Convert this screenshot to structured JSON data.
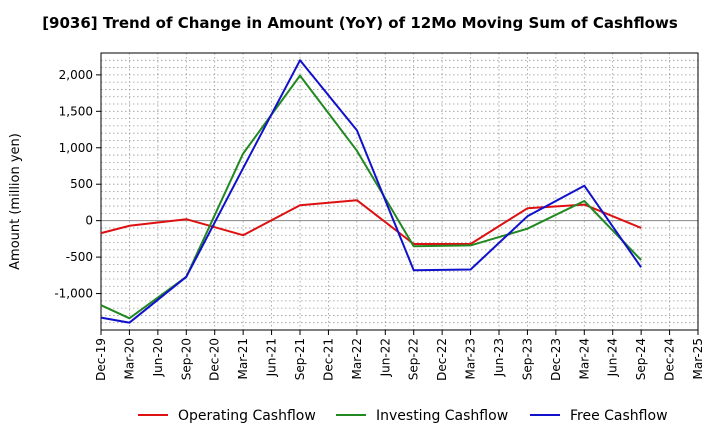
{
  "chart_data": {
    "type": "line",
    "title": "[9036]  Trend of Change in Amount (YoY) of 12Mo Moving Sum of Cashflows",
    "xlabel": "",
    "ylabel": "Amount (million yen)",
    "ylim": [
      -1500,
      2300
    ],
    "yticks": [
      -1000,
      -500,
      0,
      500,
      1000,
      1500,
      2000
    ],
    "ytick_labels": [
      "-1,000",
      "-500",
      "0",
      "500",
      "1,000",
      "1,500",
      "2,000"
    ],
    "categories": [
      "Dec-19",
      "Mar-20",
      "Jun-20",
      "Sep-20",
      "Dec-20",
      "Mar-21",
      "Jun-21",
      "Sep-21",
      "Dec-21",
      "Mar-22",
      "Jun-22",
      "Sep-22",
      "Dec-22",
      "Mar-23",
      "Jun-23",
      "Sep-23",
      "Dec-23",
      "Mar-24",
      "Jun-24",
      "Sep-24",
      "Dec-24",
      "Mar-25"
    ],
    "grid": true,
    "legend_position": "bottom",
    "series": [
      {
        "name": "Operating Cashflow",
        "color": "#dd1111",
        "values": [
          -170,
          -70,
          null,
          20,
          null,
          -200,
          null,
          210,
          null,
          280,
          null,
          -320,
          null,
          -320,
          null,
          170,
          null,
          220,
          null,
          -100,
          null,
          null
        ]
      },
      {
        "name": "Investing Cashflow",
        "color": "#228822",
        "values": [
          -1160,
          -1340,
          null,
          -770,
          null,
          920,
          null,
          1990,
          null,
          960,
          null,
          -350,
          null,
          -340,
          null,
          -110,
          null,
          270,
          null,
          -540,
          null,
          null
        ]
      },
      {
        "name": "Free Cashflow",
        "color": "#1111cc",
        "values": [
          -1330,
          -1400,
          null,
          -770,
          null,
          720,
          null,
          2200,
          null,
          1240,
          null,
          -680,
          null,
          -670,
          null,
          60,
          null,
          480,
          null,
          -640,
          null,
          null
        ]
      }
    ]
  }
}
